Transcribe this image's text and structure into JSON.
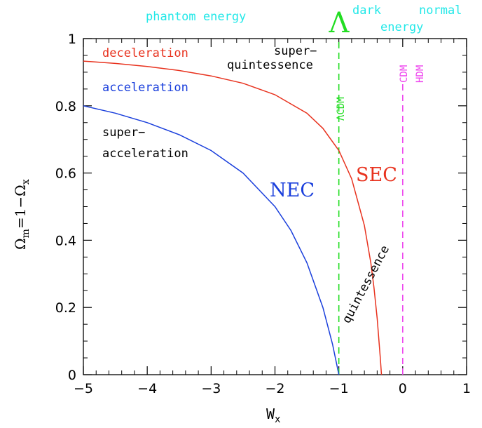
{
  "chart_data": {
    "type": "line",
    "title": "",
    "xlabel": "W",
    "xlabel_sub": "x",
    "ylabel_main": "Ω",
    "ylabel_sub1": "m",
    "ylabel_mid": "=1−Ω",
    "ylabel_sub2": "x",
    "xlim": [
      -5,
      1
    ],
    "ylim": [
      0,
      1
    ],
    "xticks": [
      -5,
      -4,
      -3,
      -2,
      -1,
      0,
      1
    ],
    "xtick_labels": [
      "−5",
      "−4",
      "−3",
      "−2",
      "−1",
      "0",
      "1"
    ],
    "yticks": [
      0,
      0.2,
      0.4,
      0.6,
      0.8,
      1
    ],
    "ytick_labels": [
      "0",
      "0.2",
      "0.4",
      "0.6",
      "0.8",
      "1"
    ],
    "grid": false,
    "series": [
      {
        "name": "NEC",
        "color": "#1a3fdc",
        "x": [
          -5,
          -4.5,
          -4,
          -3.5,
          -3,
          -2.5,
          -2,
          -1.75,
          -1.5,
          -1.25,
          -1.1,
          -1
        ],
        "y": [
          0.8,
          0.778,
          0.75,
          0.714,
          0.667,
          0.6,
          0.5,
          0.429,
          0.333,
          0.2,
          0.091,
          0
        ]
      },
      {
        "name": "SEC",
        "color": "#e8321e",
        "x": [
          -5,
          -4.5,
          -4,
          -3.5,
          -3,
          -2.5,
          -2,
          -1.5,
          -1.25,
          -1,
          -0.8,
          -0.6,
          -0.5,
          -0.45,
          -0.4,
          -0.35,
          -0.333
        ],
        "y": [
          0.933,
          0.926,
          0.917,
          0.905,
          0.889,
          0.867,
          0.833,
          0.778,
          0.733,
          0.667,
          0.583,
          0.444,
          0.333,
          0.259,
          0.167,
          0.048,
          0
        ]
      }
    ],
    "vlines": [
      {
        "name": "ΛCDM",
        "x": -1,
        "color": "#22dd22"
      },
      {
        "name": "CDM-HDM",
        "x": 0,
        "color": "#ee44ee"
      }
    ]
  },
  "labels": {
    "phantom": "phantom energy",
    "lambda": "Λ",
    "dark": "dark",
    "energy": "energy",
    "normal": "normal",
    "deceleration": "deceleration",
    "acceleration": "acceleration",
    "super_acc_1": "super−",
    "super_acc_2": "acceleration",
    "super_quint_1": "super−",
    "super_quint_2": "quintessence",
    "nec": "NEC",
    "sec": "SEC",
    "quintessence": "quintessence",
    "lcdm": "ΛCDM",
    "cdm": "CDM",
    "hdm": "HDM"
  },
  "colors": {
    "cyan": "#22e8e8",
    "green": "#22dd22",
    "magenta": "#ee44ee",
    "red": "#e8321e",
    "blue": "#1a3fdc",
    "black": "#000000"
  }
}
